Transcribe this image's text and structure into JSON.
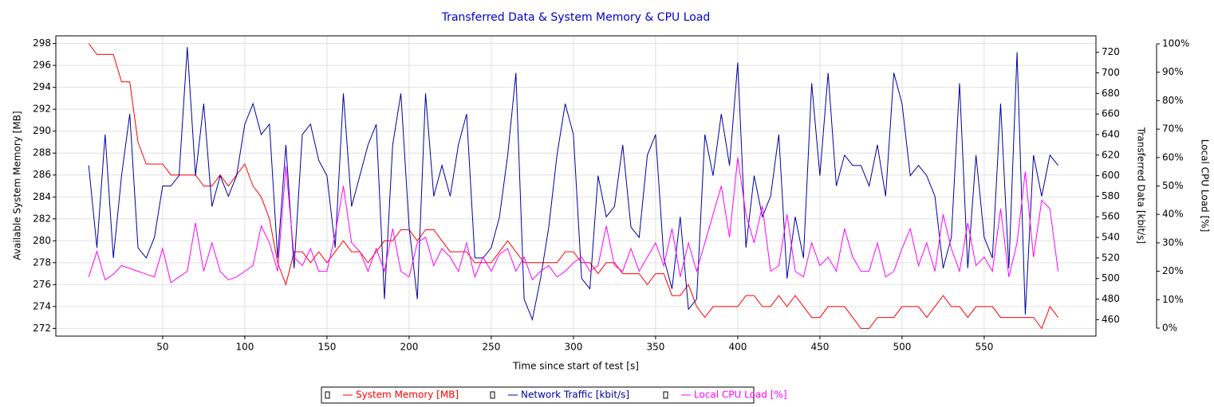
{
  "chart_data": {
    "type": "line",
    "title": "Transferred Data & System Memory & CPU Load",
    "x_label": "Time since start of test [s]",
    "y_label": "Available System Memory [MB]",
    "y2_label": "Transferred Data [kbit/s]",
    "y3_label": "Local CPU Load [%]",
    "xlim": [
      -15,
      618
    ],
    "xticks": [
      50,
      100,
      150,
      200,
      250,
      300,
      350,
      400,
      450,
      500,
      550
    ],
    "ylim": [
      271.3,
      298.7
    ],
    "yticks": [
      272,
      274,
      276,
      278,
      280,
      282,
      284,
      286,
      288,
      290,
      292,
      294,
      296,
      298
    ],
    "y2lim": [
      444,
      736
    ],
    "y2ticks": [
      460,
      480,
      500,
      520,
      540,
      560,
      580,
      600,
      620,
      640,
      660,
      680,
      700,
      720
    ],
    "y3lim": [
      -2.8,
      102.8
    ],
    "y3ticks": [
      {
        "value": 0,
        "label": "0%"
      },
      {
        "value": 10,
        "label": "10%"
      },
      {
        "value": 20,
        "label": "20%"
      },
      {
        "value": 30,
        "label": "30%"
      },
      {
        "value": 40,
        "label": "40%"
      },
      {
        "value": 50,
        "label": "50%"
      },
      {
        "value": 60,
        "label": "60%"
      },
      {
        "value": 70,
        "label": "70%"
      },
      {
        "value": 80,
        "label": "80%"
      },
      {
        "value": 90,
        "label": "90%"
      },
      {
        "value": 100,
        "label": "100%"
      }
    ],
    "grid": true,
    "legend": "bottom",
    "x": [
      5,
      10,
      15,
      20,
      25,
      30,
      35,
      40,
      45,
      50,
      55,
      60,
      65,
      70,
      75,
      80,
      85,
      90,
      95,
      100,
      105,
      110,
      115,
      120,
      125,
      130,
      135,
      140,
      145,
      150,
      155,
      160,
      165,
      170,
      175,
      180,
      185,
      190,
      195,
      200,
      205,
      210,
      215,
      220,
      225,
      230,
      235,
      240,
      245,
      250,
      255,
      260,
      265,
      270,
      275,
      280,
      285,
      290,
      295,
      300,
      305,
      310,
      315,
      320,
      325,
      330,
      335,
      340,
      345,
      350,
      355,
      360,
      365,
      370,
      375,
      380,
      385,
      390,
      395,
      400,
      405,
      410,
      415,
      420,
      425,
      430,
      435,
      440,
      445,
      450,
      455,
      460,
      465,
      470,
      475,
      480,
      485,
      490,
      495,
      500,
      505,
      510,
      515,
      520,
      525,
      530,
      535,
      540,
      545,
      550,
      555,
      560,
      565,
      570,
      575,
      580,
      585,
      590,
      595
    ],
    "series": [
      {
        "name": "System Memory [MB]",
        "color": "#ff0000",
        "axis": "y",
        "values": [
          298,
          297,
          297,
          297,
          294.5,
          294.5,
          289,
          287,
          287,
          287,
          286,
          286,
          286,
          286,
          285,
          285,
          286,
          285,
          286,
          287,
          285,
          284,
          282,
          278,
          276,
          279,
          279,
          278,
          279,
          278,
          279,
          280,
          279,
          279,
          278,
          279,
          280,
          280,
          281,
          281,
          280,
          281,
          281,
          280,
          279,
          279,
          279,
          278,
          278,
          278,
          279,
          280,
          279,
          278,
          278,
          278,
          278,
          278,
          279,
          279,
          278,
          278,
          277,
          278,
          278,
          277,
          277,
          277,
          276,
          277,
          277,
          275,
          275,
          276,
          274,
          273,
          274,
          274,
          274,
          274,
          275,
          275,
          274,
          274,
          275,
          274,
          275,
          274,
          273,
          273,
          274,
          274,
          274,
          273,
          272,
          272,
          273,
          273,
          273,
          274,
          274,
          274,
          273,
          274,
          275,
          274,
          274,
          273,
          274,
          274,
          274,
          273,
          273,
          273,
          273,
          273,
          272,
          274,
          273
        ]
      },
      {
        "name": "Network Traffic [kbit/s]",
        "color": "#0000a0",
        "axis": "y2",
        "values": [
          610,
          530,
          640,
          520,
          600,
          660,
          530,
          520,
          540,
          590,
          590,
          600,
          725,
          600,
          670,
          570,
          600,
          580,
          600,
          650,
          670,
          640,
          650,
          520,
          630,
          510,
          640,
          650,
          615,
          600,
          530,
          680,
          570,
          600,
          630,
          650,
          480,
          630,
          680,
          550,
          480,
          680,
          580,
          610,
          580,
          630,
          660,
          520,
          520,
          530,
          560,
          620,
          700,
          480,
          460,
          500,
          550,
          620,
          670,
          640,
          500,
          490,
          600,
          560,
          570,
          630,
          550,
          540,
          620,
          640,
          520,
          490,
          560,
          470,
          480,
          640,
          600,
          660,
          610,
          710,
          530,
          600,
          560,
          580,
          640,
          500,
          560,
          520,
          690,
          600,
          700,
          590,
          620,
          610,
          610,
          590,
          630,
          580,
          700,
          670,
          600,
          610,
          600,
          580,
          510,
          540,
          690,
          510,
          620,
          540,
          520,
          670,
          510,
          720,
          465,
          620,
          580,
          620,
          610
        ]
      },
      {
        "name": "Local CPU Load [%]",
        "color": "#ff00ff",
        "axis": "y3",
        "values": [
          18,
          27,
          17,
          19,
          22,
          21,
          20,
          19,
          18,
          28,
          16,
          18,
          20,
          37,
          20,
          30,
          20,
          17,
          18,
          20,
          22,
          36,
          30,
          20,
          57,
          25,
          22,
          28,
          20,
          20,
          33,
          50,
          30,
          27,
          20,
          28,
          20,
          35,
          20,
          18,
          30,
          32,
          22,
          28,
          25,
          20,
          30,
          18,
          25,
          20,
          26,
          28,
          20,
          25,
          17,
          20,
          22,
          18,
          20,
          23,
          25,
          20,
          22,
          36,
          22,
          20,
          28,
          20,
          25,
          30,
          22,
          35,
          18,
          30,
          20,
          30,
          40,
          50,
          32,
          60,
          40,
          30,
          43,
          20,
          22,
          40,
          20,
          18,
          30,
          22,
          25,
          20,
          35,
          25,
          20,
          20,
          30,
          18,
          20,
          28,
          35,
          22,
          30,
          20,
          40,
          28,
          20,
          37,
          22,
          25,
          20,
          42,
          18,
          30,
          55,
          25,
          45,
          42,
          20
        ]
      }
    ]
  }
}
